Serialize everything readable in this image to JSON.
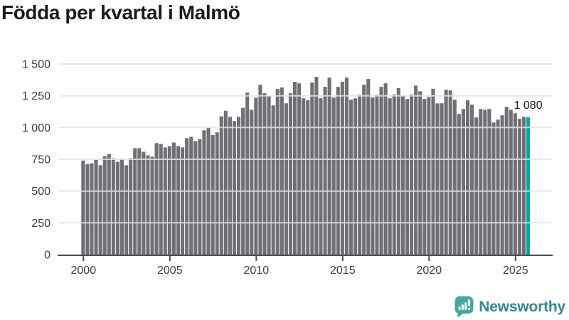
{
  "title": "Födda per kvartal i Malmö",
  "branding": {
    "name": "Newsworthy"
  },
  "colors": {
    "bar": "#6f6f75",
    "highlight": "#0ba3a2",
    "grid": "#e2e2e2",
    "axis": "#4d4d4d",
    "tick_text": "#3d3d3d",
    "title_text": "#1b1b1b",
    "value_label_text": "#1b1b1b",
    "logo_icon": "#4aa79f",
    "logo_text": "#37858e",
    "background": "#ffffff"
  },
  "chart_data": {
    "type": "bar",
    "title": "Födda per kvartal i Malmö",
    "xlabel": "",
    "ylabel": "",
    "x_unit": "quarter",
    "x_start": "2000 Q1",
    "x_end": "2025 Q4",
    "start_year": 2000,
    "quarters_per_year": 4,
    "ylim": [
      0,
      1500
    ],
    "grid": true,
    "x_tick_years": [
      2000,
      2005,
      2010,
      2015,
      2020,
      2025
    ],
    "x_tick_labels": [
      "2000",
      "2005",
      "2010",
      "2015",
      "2020",
      "2025"
    ],
    "y_tick_values": [
      0,
      250,
      500,
      750,
      1000,
      1250,
      1500
    ],
    "y_tick_labels": [
      "0",
      "250",
      "500",
      "750",
      "1 000",
      "1 250",
      "1 500"
    ],
    "values": [
      740,
      712,
      718,
      745,
      703,
      775,
      792,
      758,
      730,
      753,
      703,
      758,
      837,
      837,
      809,
      781,
      770,
      877,
      871,
      843,
      854,
      882,
      854,
      843,
      916,
      927,
      893,
      910,
      978,
      998,
      941,
      962,
      1088,
      1132,
      1084,
      1051,
      1085,
      1155,
      1275,
      1140,
      1235,
      1337,
      1270,
      1247,
      1174,
      1303,
      1315,
      1191,
      1270,
      1360,
      1348,
      1230,
      1214,
      1354,
      1399,
      1230,
      1320,
      1393,
      1236,
      1320,
      1360,
      1393,
      1219,
      1230,
      1258,
      1337,
      1382,
      1236,
      1258,
      1320,
      1348,
      1230,
      1260,
      1310,
      1250,
      1225,
      1260,
      1330,
      1285,
      1225,
      1240,
      1305,
      1190,
      1191,
      1298,
      1292,
      1219,
      1107,
      1146,
      1214,
      1180,
      1079,
      1146,
      1140,
      1146,
      1039,
      1062,
      1096,
      1163,
      1140,
      1112,
      1068,
      1084,
      1080
    ],
    "highlighted_index": 103,
    "highlighted_value": 1080,
    "highlighted_value_label": "1 080",
    "legend": "none"
  }
}
